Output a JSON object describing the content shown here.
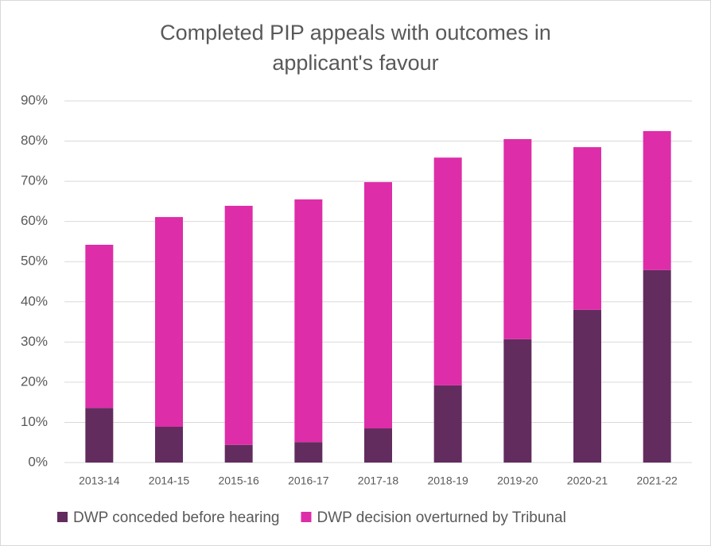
{
  "chart_data": {
    "type": "stacked_bar",
    "title": "Completed PIP appeals with outcomes in applicant's favour",
    "categories": [
      "2013-14",
      "2014-15",
      "2015-16",
      "2016-17",
      "2017-18",
      "2018-19",
      "2019-20",
      "2020-21",
      "2021-22"
    ],
    "series": [
      {
        "name": "DWP conceded before hearing",
        "color": "#622c5e",
        "values": [
          13.6,
          8.9,
          4.4,
          5.1,
          8.5,
          19.2,
          30.7,
          38.0,
          47.9
        ]
      },
      {
        "name": "DWP decision overturned by Tribunal",
        "color": "#dd2da8",
        "values": [
          40.6,
          52.2,
          59.5,
          60.4,
          61.3,
          56.7,
          49.8,
          40.5,
          34.6
        ]
      }
    ],
    "ylim": [
      0,
      90
    ],
    "yticks": [
      {
        "value": 0,
        "label": "0%"
      },
      {
        "value": 10,
        "label": "10%"
      },
      {
        "value": 20,
        "label": "20%"
      },
      {
        "value": 30,
        "label": "30%"
      },
      {
        "value": 40,
        "label": "40%"
      },
      {
        "value": 50,
        "label": "50%"
      },
      {
        "value": 60,
        "label": "60%"
      },
      {
        "value": 70,
        "label": "70%"
      },
      {
        "value": 80,
        "label": "80%"
      },
      {
        "value": 90,
        "label": "90%"
      }
    ],
    "grid": true,
    "legend": "bottom"
  }
}
